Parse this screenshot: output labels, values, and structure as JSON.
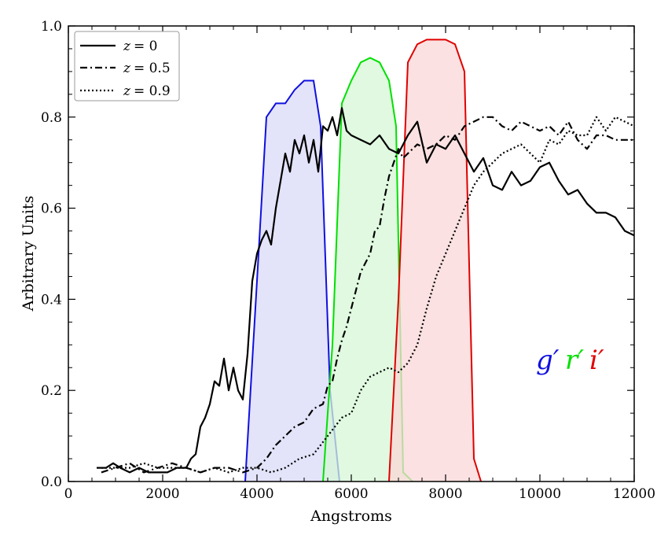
{
  "chart_data": {
    "type": "line",
    "title": "",
    "xlabel": "Angstroms",
    "ylabel": "Arbitrary Units",
    "xlim": [
      0,
      12000
    ],
    "ylim": [
      0.0,
      1.0
    ],
    "x_ticks": [
      0,
      2000,
      4000,
      6000,
      8000,
      10000,
      12000
    ],
    "x_tick_labels": [
      "0",
      "2000",
      "4000",
      "6000",
      "8000",
      "10000",
      "12000"
    ],
    "y_ticks": [
      0.0,
      0.2,
      0.4,
      0.6,
      0.8,
      1.0
    ],
    "y_tick_labels": [
      "0.0",
      "0.2",
      "0.4",
      "0.6",
      "0.8",
      "1.0"
    ],
    "legend_position": "top-left",
    "series": [
      {
        "name": "z = 0",
        "legend_math": "z",
        "legend_value": "= 0",
        "style": "solid",
        "color": "#000000",
        "x": [
          600,
          800,
          950,
          1100,
          1300,
          1500,
          1700,
          1900,
          2100,
          2300,
          2500,
          2600,
          2700,
          2800,
          2900,
          3000,
          3100,
          3200,
          3300,
          3400,
          3500,
          3600,
          3700,
          3800,
          3900,
          4000,
          4100,
          4200,
          4300,
          4400,
          4500,
          4600,
          4700,
          4800,
          4900,
          5000,
          5100,
          5200,
          5300,
          5400,
          5500,
          5600,
          5700,
          5800,
          5900,
          6000,
          6200,
          6400,
          6600,
          6800,
          7000,
          7200,
          7400,
          7600,
          7800,
          8000,
          8200,
          8400,
          8600,
          8800,
          9000,
          9200,
          9400,
          9600,
          9800,
          10000,
          10200,
          10400,
          10600,
          10800,
          11000,
          11200,
          11400,
          11600,
          11800,
          12000
        ],
        "values": [
          0.03,
          0.03,
          0.04,
          0.03,
          0.02,
          0.03,
          0.02,
          0.02,
          0.02,
          0.03,
          0.03,
          0.05,
          0.06,
          0.12,
          0.14,
          0.17,
          0.22,
          0.21,
          0.27,
          0.2,
          0.25,
          0.2,
          0.18,
          0.28,
          0.44,
          0.5,
          0.53,
          0.55,
          0.52,
          0.6,
          0.66,
          0.72,
          0.68,
          0.75,
          0.72,
          0.76,
          0.7,
          0.75,
          0.68,
          0.78,
          0.77,
          0.8,
          0.76,
          0.82,
          0.77,
          0.76,
          0.75,
          0.74,
          0.76,
          0.73,
          0.72,
          0.76,
          0.79,
          0.7,
          0.74,
          0.73,
          0.76,
          0.72,
          0.68,
          0.71,
          0.65,
          0.64,
          0.68,
          0.65,
          0.66,
          0.69,
          0.7,
          0.66,
          0.63,
          0.64,
          0.61,
          0.59,
          0.59,
          0.58,
          0.55,
          0.54
        ]
      },
      {
        "name": "z = 0.5",
        "legend_math": "z",
        "legend_value": "= 0.5",
        "style": "dashdot",
        "color": "#000000",
        "x": [
          700,
          1000,
          1300,
          1600,
          1900,
          2200,
          2500,
          2800,
          3100,
          3400,
          3700,
          4000,
          4200,
          4400,
          4600,
          4800,
          5000,
          5200,
          5400,
          5500,
          5600,
          5700,
          5800,
          5900,
          6000,
          6100,
          6200,
          6300,
          6400,
          6500,
          6600,
          6700,
          6800,
          6900,
          7000,
          7100,
          7200,
          7400,
          7600,
          7800,
          8000,
          8200,
          8400,
          8600,
          8800,
          9000,
          9200,
          9400,
          9600,
          9800,
          10000,
          10200,
          10400,
          10600,
          10800,
          11000,
          11200,
          11400,
          11600,
          11800,
          12000
        ],
        "values": [
          0.02,
          0.03,
          0.04,
          0.02,
          0.03,
          0.04,
          0.03,
          0.02,
          0.03,
          0.03,
          0.02,
          0.03,
          0.05,
          0.08,
          0.1,
          0.12,
          0.13,
          0.16,
          0.17,
          0.21,
          0.22,
          0.27,
          0.31,
          0.34,
          0.38,
          0.42,
          0.46,
          0.48,
          0.5,
          0.55,
          0.56,
          0.62,
          0.67,
          0.7,
          0.73,
          0.71,
          0.72,
          0.74,
          0.73,
          0.74,
          0.76,
          0.75,
          0.78,
          0.79,
          0.8,
          0.8,
          0.78,
          0.77,
          0.79,
          0.78,
          0.77,
          0.78,
          0.76,
          0.79,
          0.75,
          0.73,
          0.76,
          0.76,
          0.75,
          0.75,
          0.75
        ]
      },
      {
        "name": "z = 0.9",
        "legend_math": "z",
        "legend_value": "= 0.9",
        "style": "dotted",
        "color": "#000000",
        "x": [
          700,
          1000,
          1300,
          1600,
          1900,
          2200,
          2500,
          2800,
          3100,
          3400,
          3700,
          4000,
          4300,
          4600,
          4900,
          5200,
          5500,
          5800,
          6000,
          6200,
          6400,
          6600,
          6800,
          7000,
          7200,
          7400,
          7600,
          7800,
          8000,
          8200,
          8400,
          8600,
          8800,
          9000,
          9200,
          9400,
          9600,
          9800,
          10000,
          10200,
          10400,
          10600,
          10800,
          11000,
          11200,
          11400,
          11600,
          11800,
          12000
        ],
        "values": [
          0.03,
          0.03,
          0.03,
          0.04,
          0.03,
          0.03,
          0.03,
          0.02,
          0.03,
          0.02,
          0.03,
          0.03,
          0.02,
          0.03,
          0.05,
          0.06,
          0.1,
          0.14,
          0.15,
          0.2,
          0.23,
          0.24,
          0.25,
          0.24,
          0.26,
          0.3,
          0.38,
          0.45,
          0.5,
          0.55,
          0.6,
          0.65,
          0.68,
          0.7,
          0.72,
          0.73,
          0.74,
          0.72,
          0.7,
          0.75,
          0.74,
          0.77,
          0.76,
          0.76,
          0.8,
          0.77,
          0.8,
          0.79,
          0.78
        ]
      }
    ],
    "filters": [
      {
        "name": "g'",
        "edge_color": "#1010e0",
        "fill_color": "#d9d9f7",
        "x": [
          3750,
          4000,
          4200,
          4400,
          4600,
          4800,
          5000,
          5200,
          5350,
          5550,
          5750
        ],
        "values": [
          0.0,
          0.44,
          0.8,
          0.83,
          0.83,
          0.86,
          0.88,
          0.88,
          0.78,
          0.2,
          0.0
        ]
      },
      {
        "name": "r'",
        "edge_color": "#00e000",
        "fill_color": "#d6f7d6",
        "x": [
          5400,
          5600,
          5800,
          6000,
          6200,
          6400,
          6600,
          6800,
          6950,
          7100,
          7300
        ],
        "values": [
          0.0,
          0.3,
          0.83,
          0.88,
          0.92,
          0.93,
          0.92,
          0.88,
          0.78,
          0.02,
          0.0
        ]
      },
      {
        "name": "i'",
        "edge_color": "#e00000",
        "fill_color": "#fad7d7",
        "x": [
          6800,
          7000,
          7200,
          7400,
          7600,
          7800,
          8000,
          8200,
          8400,
          8600,
          8750
        ],
        "values": [
          0.0,
          0.4,
          0.92,
          0.96,
          0.97,
          0.97,
          0.97,
          0.96,
          0.9,
          0.05,
          0.0
        ]
      }
    ],
    "band_labels": [
      "g′",
      "r′",
      "i′"
    ]
  }
}
